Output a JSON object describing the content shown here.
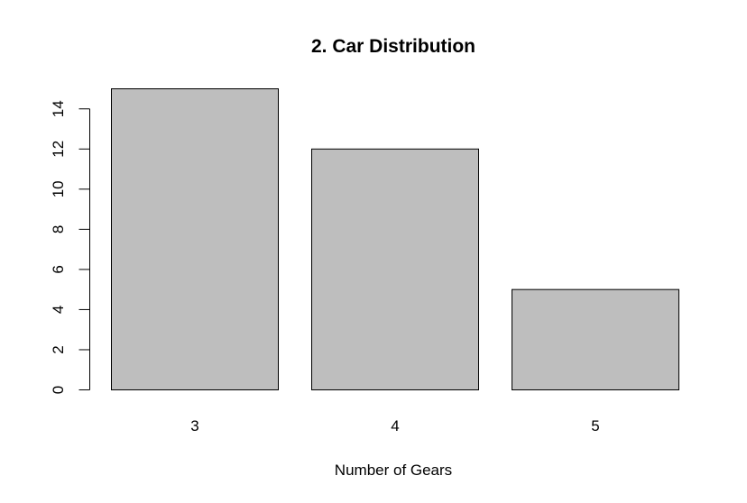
{
  "chart_data": {
    "type": "bar",
    "title": "2. Car Distribution",
    "xlabel": "Number of Gears",
    "ylabel": "",
    "categories": [
      "3",
      "4",
      "5"
    ],
    "values": [
      15,
      12,
      5
    ],
    "ylim": [
      0,
      15
    ],
    "yticks": [
      0,
      2,
      4,
      6,
      8,
      10,
      12,
      14
    ],
    "grid": false,
    "bar_color": "#bebebe",
    "outline_color": "#000000"
  }
}
